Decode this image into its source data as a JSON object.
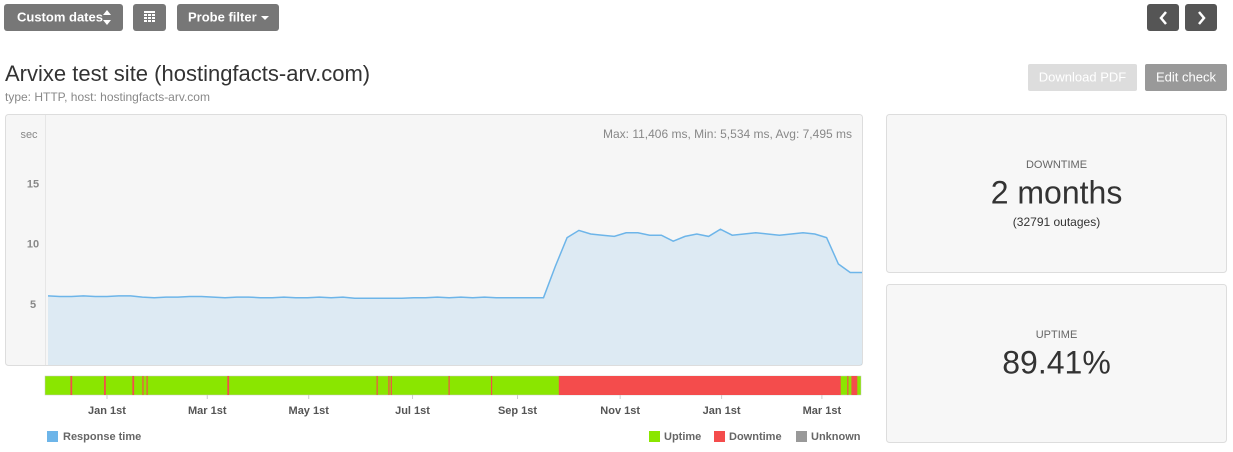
{
  "toolbar": {
    "custom_dates": "Custom dates",
    "probe_filter": "Probe filter"
  },
  "header": {
    "title": "Arvixe test site (hostingfacts-arv.com)",
    "subtitle": "type: HTTP, host: hostingfacts-arv.com",
    "download_pdf": "Download PDF",
    "edit_check": "Edit check"
  },
  "chart_data": {
    "type": "area",
    "y_label": "sec",
    "annotation": "Max: 11,406 ms, Min: 5,534 ms, Avg: 7,495 ms",
    "x": [
      0,
      1,
      2,
      3,
      4,
      5,
      6,
      7,
      8,
      9,
      10,
      11,
      12,
      13,
      14,
      15,
      16,
      17,
      18,
      19,
      20,
      21,
      22,
      23,
      24,
      25,
      26,
      27,
      28,
      29,
      30,
      31,
      32,
      33,
      34,
      35,
      36,
      37,
      38,
      39,
      40,
      41,
      42,
      43,
      44,
      45,
      46,
      47,
      48,
      49,
      50,
      51,
      52,
      53,
      54,
      55,
      56,
      57,
      58,
      59,
      60,
      61,
      62,
      63,
      64,
      65,
      66,
      67,
      68,
      69
    ],
    "series": [
      {
        "name": "Response time",
        "color": "#6db5e9",
        "values": [
          5.75,
          5.7,
          5.7,
          5.75,
          5.7,
          5.7,
          5.75,
          5.75,
          5.65,
          5.6,
          5.65,
          5.65,
          5.7,
          5.7,
          5.65,
          5.6,
          5.65,
          5.65,
          5.6,
          5.6,
          5.65,
          5.6,
          5.6,
          5.65,
          5.6,
          5.65,
          5.55,
          5.55,
          5.55,
          5.55,
          5.55,
          5.6,
          5.6,
          5.65,
          5.6,
          5.65,
          5.6,
          5.65,
          5.6,
          5.6,
          5.6,
          5.6,
          5.6,
          8.2,
          10.6,
          11.2,
          10.9,
          10.8,
          10.7,
          11.0,
          11.0,
          10.8,
          10.8,
          10.3,
          10.7,
          10.9,
          10.7,
          11.3,
          10.8,
          10.9,
          11.0,
          10.9,
          10.8,
          10.9,
          11.0,
          10.9,
          10.6,
          8.4,
          7.7,
          7.7
        ]
      }
    ],
    "xlim": [
      0,
      69
    ],
    "xticks": [
      {
        "value": 5.0,
        "label": "Jan 1st"
      },
      {
        "value": 13.5,
        "label": "Mar 1st"
      },
      {
        "value": 22.1,
        "label": "May 1st"
      },
      {
        "value": 30.9,
        "label": "Jul 1st"
      },
      {
        "value": 39.8,
        "label": "Sep 1st"
      },
      {
        "value": 48.5,
        "label": "Nov 1st"
      },
      {
        "value": 57.1,
        "label": "Jan 1st"
      },
      {
        "value": 65.6,
        "label": "Mar 1st"
      }
    ],
    "ylim": [
      0,
      20.8
    ],
    "yticks": [
      5,
      10,
      15
    ],
    "grid": false,
    "status_legend": [
      {
        "name": "Uptime",
        "color": "#8ae600"
      },
      {
        "name": "Downtime",
        "color": "#f44c4c"
      },
      {
        "name": "Unknown",
        "color": "#999999"
      }
    ],
    "outage_periods": [
      [
        1.9,
        2.05
      ],
      [
        4.75,
        4.9
      ],
      [
        7.15,
        7.3
      ],
      [
        8.0,
        8.1
      ],
      [
        8.35,
        8.45
      ],
      [
        15.2,
        15.35
      ],
      [
        27.85,
        27.95
      ],
      [
        28.85,
        28.95
      ],
      [
        29.05,
        29.15
      ],
      [
        33.95,
        34.05
      ],
      [
        37.55,
        37.65
      ],
      [
        43.3,
        67.2
      ],
      [
        67.75,
        67.85
      ],
      [
        68.1,
        68.6
      ]
    ]
  },
  "downtime_panel": {
    "label": "DOWNTIME",
    "value": "2 months",
    "detail": "(32791 outages)"
  },
  "uptime_panel": {
    "label": "UPTIME",
    "value": "89.41%"
  }
}
